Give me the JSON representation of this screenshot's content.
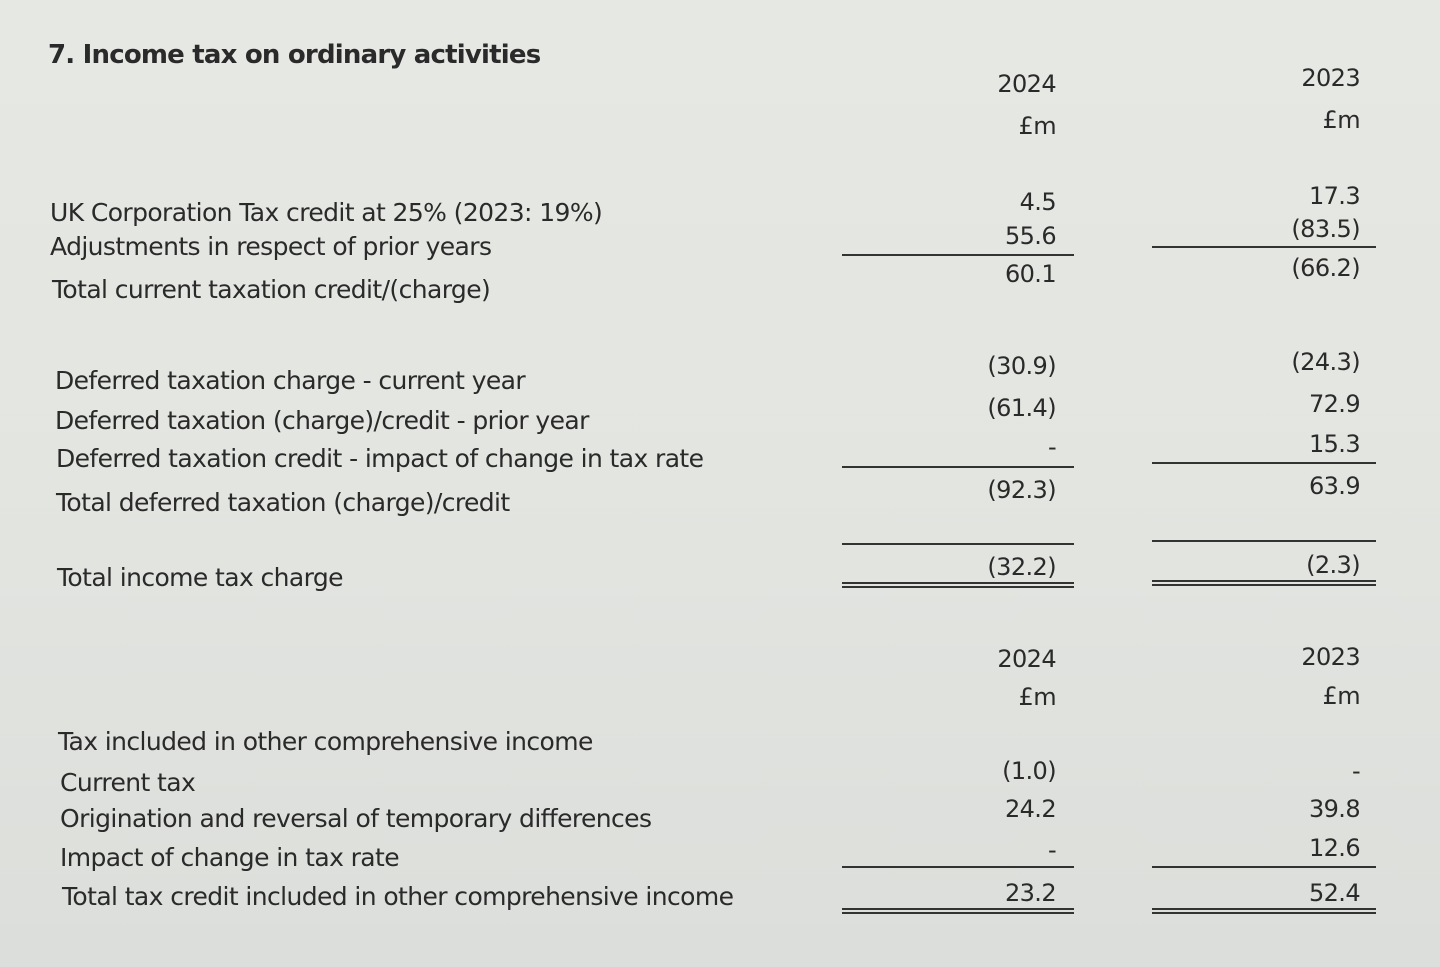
{
  "title": "7. Income tax on ordinary activities",
  "columns": [
    {
      "year": "2024",
      "unit": "£m"
    },
    {
      "year": "2023",
      "unit": "£m"
    }
  ],
  "current_tax": {
    "rows": [
      {
        "label": "UK Corporation Tax credit at 25% (2023: 19%)",
        "v2024": "4.5",
        "v2023": "17.3"
      },
      {
        "label": "Adjustments in respect of prior years",
        "v2024": "55.6",
        "v2023": "(83.5)"
      }
    ],
    "total": {
      "label": "Total current taxation credit/(charge)",
      "v2024": "60.1",
      "v2023": "(66.2)"
    }
  },
  "deferred_tax": {
    "rows": [
      {
        "label": "Deferred taxation charge - current year",
        "v2024": "(30.9)",
        "v2023": "(24.3)"
      },
      {
        "label": "Deferred taxation (charge)/credit - prior year",
        "v2024": "(61.4)",
        "v2023": "72.9"
      },
      {
        "label": "Deferred taxation credit - impact of change in tax rate",
        "v2024": "-",
        "v2023": "15.3"
      }
    ],
    "total": {
      "label": "Total deferred taxation (charge)/credit",
      "v2024": "(92.3)",
      "v2023": "63.9"
    }
  },
  "income_tax_total": {
    "label": "Total income tax charge",
    "v2024": "(32.2)",
    "v2023": "(2.3)"
  },
  "oci": {
    "heading": "Tax included in other comprehensive income",
    "rows": [
      {
        "label": "Current tax",
        "v2024": "(1.0)",
        "v2023": "-"
      },
      {
        "label": "Origination and reversal of temporary differences",
        "v2024": "24.2",
        "v2023": "39.8"
      },
      {
        "label": "Impact of change in tax rate",
        "v2024": "-",
        "v2023": "12.6"
      }
    ],
    "total": {
      "label": "Total tax credit included in other comprehensive income",
      "v2024": "23.2",
      "v2023": "52.4"
    }
  }
}
